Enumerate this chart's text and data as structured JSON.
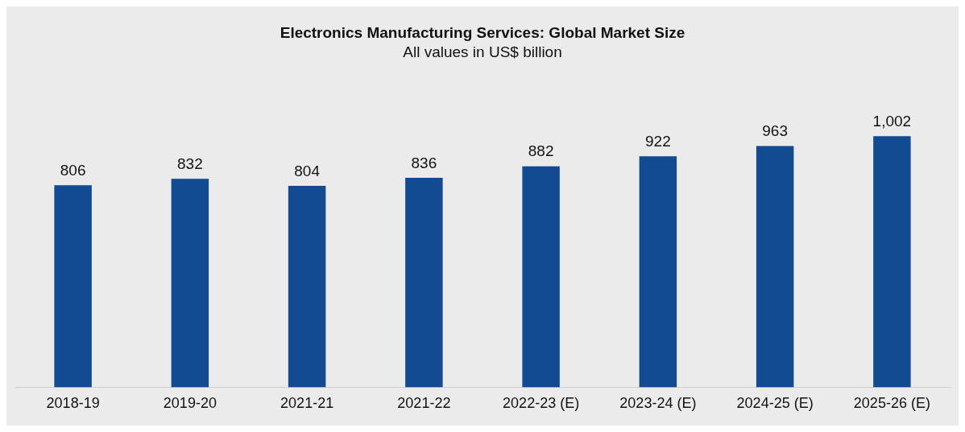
{
  "chart_data": {
    "type": "bar",
    "title": "Electronics Manufacturing Services: Global Market Size",
    "subtitle": "All values in US$ billion",
    "categories": [
      "2018-19",
      "2019-20",
      "2021-21",
      "2021-22",
      "2022-23 (E)",
      "2023-24 (E)",
      "2024-25 (E)",
      "2025-26 (E)"
    ],
    "values": [
      806,
      832,
      804,
      836,
      882,
      922,
      963,
      1002
    ],
    "value_labels": [
      "806",
      "832",
      "804",
      "836",
      "882",
      "922",
      "963",
      "1,002"
    ],
    "color": "#124b91",
    "grid": false,
    "legend": false
  }
}
